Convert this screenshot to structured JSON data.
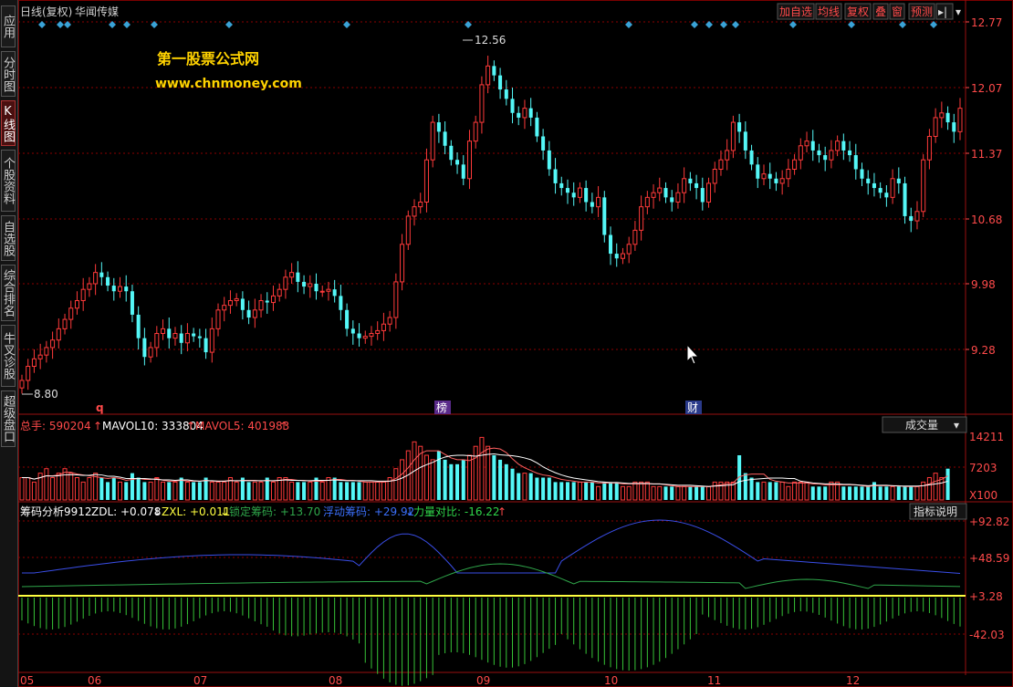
{
  "sidebar": [
    {
      "label": "应用",
      "active": false
    },
    {
      "label": "分时图",
      "active": false
    },
    {
      "label": "K线图",
      "active": true
    },
    {
      "label": "个股资料",
      "active": false
    },
    {
      "label": "自选股",
      "active": false
    },
    {
      "label": "综合排名",
      "active": false
    },
    {
      "label": "牛叉诊股",
      "active": false
    },
    {
      "label": "超级盘口",
      "active": false
    }
  ],
  "header": {
    "title": "日线(复权)",
    "stock_name": "华闻传媒",
    "buttons": [
      "加自选",
      "均线",
      "复权",
      "叠",
      "窗",
      "预测"
    ],
    "arrow_label": "▸|",
    "dropdown_label": "▾"
  },
  "watermark": {
    "line1": "第一股票公式网",
    "line2": "www.chnmoney.com"
  },
  "price_axis": [
    "12.77",
    "12.07",
    "11.37",
    "10.68",
    "9.98",
    "9.28"
  ],
  "high_marker": "12.56",
  "low_marker": "8.80",
  "event_labels": {
    "q": "q",
    "bang": "榜",
    "cai": "财"
  },
  "volume": {
    "total_label": "总手: 590204",
    "mavol10_label": "MAVOL10: 333804",
    "mavol5_label": "MAVOL5: 401983",
    "up_arrow": "↑",
    "selector": "成交量",
    "selector_arrow": "▾",
    "axis": [
      "14211",
      "7203",
      "X100"
    ]
  },
  "indicator": {
    "name": "筹码分析9912",
    "zdl_label": "ZDL: +0.078",
    "zxl_label": "ZXL: +0.011",
    "lock_label": "锁定筹码: +13.70",
    "float_label": "浮动筹码: +29.92",
    "force_label": "力量对比: -16.22",
    "down_arrow": "↓",
    "up_arrow": "↑",
    "help_button": "指标说明",
    "axis": [
      "+92.82",
      "+48.59",
      "+3.28",
      "-42.03"
    ]
  },
  "months": [
    "05",
    "06",
    "07",
    "08",
    "09",
    "10",
    "11",
    "12"
  ],
  "colors": {
    "up": "#ff3a3a",
    "down": "#54f7f7",
    "grid": "#8b0000",
    "axis_text": "#ff4a4a",
    "blue": "#3a4ee8",
    "green": "#2fa64a",
    "yellow": "#ffff40",
    "white": "#ffffff",
    "diamond": "#3aa2d6"
  },
  "chart_data": {
    "type": "candlestick",
    "title": "华闻传媒 日线(复权)",
    "y_ticks": [
      12.77,
      12.07,
      11.37,
      10.68,
      9.98,
      9.28
    ],
    "ylim": [
      8.75,
      12.85
    ],
    "max_price": 12.56,
    "min_price": 8.8,
    "month_labels": [
      "05",
      "06",
      "07",
      "08",
      "09",
      "10",
      "11",
      "12"
    ],
    "closes": [
      8.95,
      9.1,
      9.18,
      9.22,
      9.3,
      9.38,
      9.5,
      9.6,
      9.72,
      9.8,
      9.92,
      9.98,
      10.1,
      10.05,
      9.96,
      9.9,
      9.95,
      9.9,
      9.65,
      9.4,
      9.2,
      9.3,
      9.45,
      9.5,
      9.4,
      9.45,
      9.35,
      9.45,
      9.42,
      9.4,
      9.25,
      9.5,
      9.7,
      9.75,
      9.8,
      9.82,
      9.7,
      9.62,
      9.7,
      9.8,
      9.78,
      9.85,
      9.92,
      10.05,
      10.1,
      10.0,
      9.95,
      9.98,
      9.9,
      9.9,
      9.92,
      9.85,
      9.7,
      9.5,
      9.45,
      9.4,
      9.42,
      9.45,
      9.48,
      9.55,
      9.62,
      10.0,
      10.4,
      10.7,
      10.8,
      10.85,
      11.3,
      11.7,
      11.6,
      11.45,
      11.3,
      11.25,
      11.1,
      11.5,
      11.7,
      12.1,
      12.3,
      12.2,
      12.05,
      11.95,
      11.8,
      11.75,
      11.85,
      11.75,
      11.55,
      11.4,
      11.2,
      11.05,
      11.0,
      10.95,
      10.9,
      11.0,
      10.85,
      10.8,
      10.9,
      10.5,
      10.3,
      10.25,
      10.3,
      10.4,
      10.55,
      10.8,
      10.9,
      10.95,
      11.0,
      10.9,
      10.85,
      10.95,
      11.1,
      11.05,
      11.0,
      10.85,
      11.05,
      11.2,
      11.3,
      11.4,
      11.7,
      11.6,
      11.4,
      11.25,
      11.1,
      11.15,
      11.1,
      11.05,
      11.1,
      11.2,
      11.3,
      11.45,
      11.5,
      11.4,
      11.35,
      11.3,
      11.4,
      11.5,
      11.4,
      11.35,
      11.2,
      11.1,
      11.05,
      11.0,
      10.95,
      10.9,
      11.1,
      11.05,
      10.7,
      10.65,
      10.75,
      11.3,
      11.55,
      11.75,
      11.8,
      11.7,
      11.6,
      11.85
    ]
  },
  "volume_data": [
    5,
    5,
    4,
    6,
    7,
    5,
    6,
    7,
    6,
    5,
    4,
    5,
    6,
    5,
    4,
    5,
    4,
    4,
    6,
    5,
    4,
    4,
    5,
    4,
    4,
    4,
    5,
    4,
    4,
    4,
    5,
    4,
    4,
    4,
    5,
    4,
    5,
    4,
    4,
    4,
    5,
    4,
    5,
    5,
    4,
    4,
    4,
    4,
    5,
    4,
    5,
    5,
    4,
    4,
    4,
    4,
    4,
    4,
    4,
    4,
    5,
    7,
    9,
    11,
    13,
    12,
    10,
    9,
    11,
    9,
    8,
    8,
    9,
    10,
    12,
    14,
    12,
    10,
    9,
    8,
    7,
    6,
    6,
    6,
    5,
    5,
    5,
    4,
    4,
    4,
    4,
    4,
    4,
    4,
    3,
    4,
    4,
    4,
    3,
    3,
    4,
    4,
    4,
    3,
    3,
    3,
    3,
    3,
    3,
    3,
    3,
    3,
    3,
    4,
    4,
    4,
    4,
    10,
    6,
    5,
    4,
    4,
    4,
    4,
    4,
    3,
    4,
    4,
    4,
    3,
    3,
    3,
    4,
    4,
    3,
    3,
    3,
    3,
    3,
    4,
    3,
    3,
    3,
    3,
    3,
    3,
    3,
    4,
    5,
    6,
    5,
    7
  ]
}
